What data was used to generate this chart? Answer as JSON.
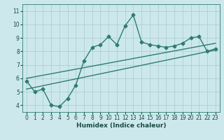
{
  "title": "",
  "xlabel": "Humidex (Indice chaleur)",
  "ylabel": "",
  "bg_color": "#cce8ec",
  "grid_color": "#b0d0d4",
  "line_color": "#2d7d6e",
  "xlim": [
    -0.5,
    23.5
  ],
  "ylim": [
    3.5,
    11.5
  ],
  "xticks": [
    0,
    1,
    2,
    3,
    4,
    5,
    6,
    7,
    8,
    9,
    10,
    11,
    12,
    13,
    14,
    15,
    16,
    17,
    18,
    19,
    20,
    21,
    22,
    23
  ],
  "yticks": [
    4,
    5,
    6,
    7,
    8,
    9,
    10,
    11
  ],
  "line1_x": [
    0,
    1,
    2,
    3,
    4,
    5,
    6,
    7,
    8,
    9,
    10,
    11,
    12,
    13,
    14,
    15,
    16,
    17,
    18,
    19,
    20,
    21,
    22,
    23
  ],
  "line1_y": [
    5.8,
    5.0,
    5.2,
    4.0,
    3.9,
    4.5,
    5.5,
    7.3,
    8.3,
    8.5,
    9.1,
    8.5,
    9.9,
    10.7,
    8.7,
    8.5,
    8.4,
    8.3,
    8.4,
    8.6,
    9.0,
    9.1,
    8.0,
    8.2
  ],
  "line2_x": [
    0,
    23
  ],
  "line2_y": [
    5.2,
    8.1
  ],
  "line3_x": [
    0,
    23
  ],
  "line3_y": [
    6.0,
    8.6
  ],
  "marker_size": 2.5,
  "line_width": 1.0
}
